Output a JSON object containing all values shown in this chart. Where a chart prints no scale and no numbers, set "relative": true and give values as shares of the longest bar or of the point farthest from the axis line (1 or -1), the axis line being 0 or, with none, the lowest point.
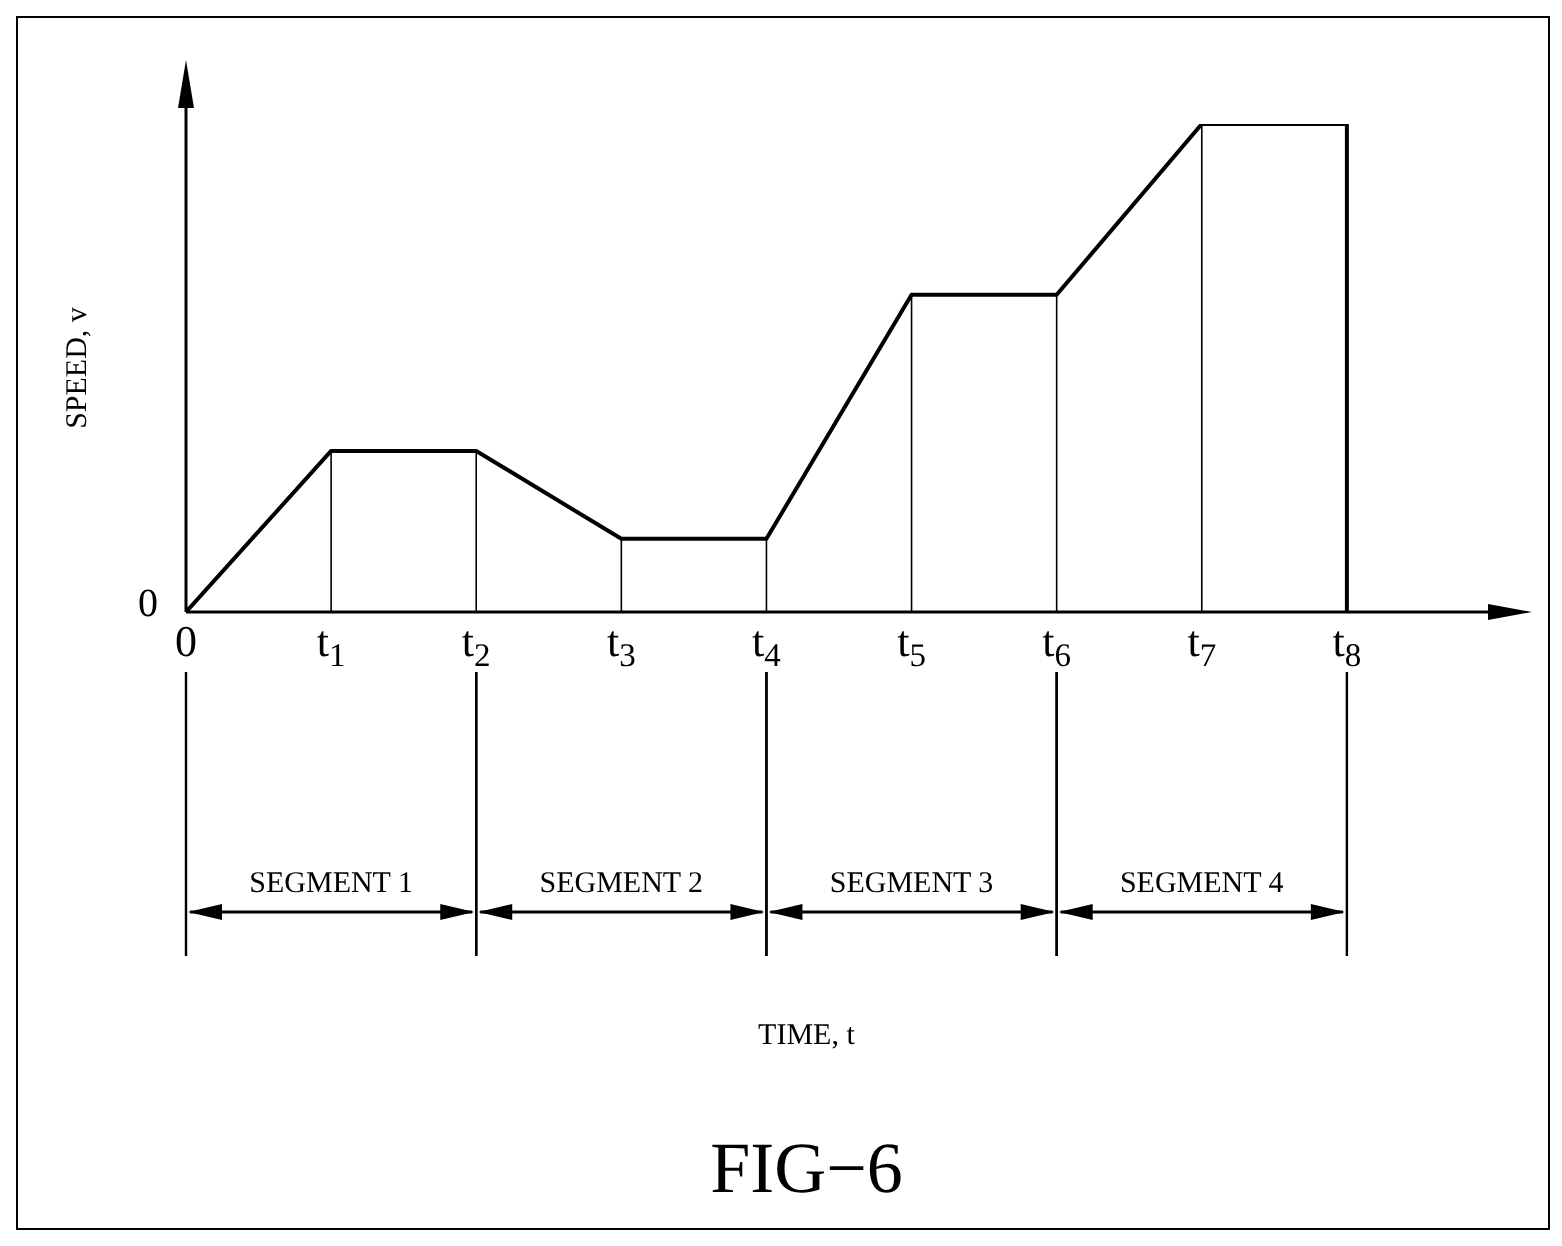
{
  "chart_data": {
    "type": "line",
    "title": "FIG−6",
    "ylabel": "SPEED, v",
    "relative": true,
    "categories": [
      "0",
      "t$_{1}$",
      "t$_{2}$",
      "t$_{3}$",
      "t$_{4}$",
      "t$_{5}$",
      "t$_{6}$",
      "t$_{7}$",
      "t$_{8}$"
    ],
    "series": [
      {
        "color": "#000000",
        "values": [
          0,
          0.33,
          0.33,
          0.15,
          0.15,
          0.65,
          0.65,
          1,
          1
        ]
      }
    ],
    "ref_lines": [
      {
        "axis": "x",
        "value": "t$_{1}$",
        "label": null
      },
      {
        "axis": "x",
        "value": "t$_{2}$",
        "label": null
      },
      {
        "axis": "x",
        "value": "t$_{3}$",
        "label": null
      },
      {
        "axis": "x",
        "value": "t$_{4}$",
        "label": null
      },
      {
        "axis": "x",
        "value": "t$_{5}$",
        "label": null
      },
      {
        "axis": "x",
        "value": "t$_{6}$",
        "label": null
      },
      {
        "axis": "x",
        "value": "t$_{7}$",
        "label": null
      },
      {
        "axis": "x",
        "value": "t$_{8}$",
        "label": null
      }
    ],
    "annotations": [
      {
        "text": "0",
        "x": "0",
        "y": 0
      },
      "SEGMENT 1",
      "SEGMENT 2",
      "SEGMENT 3",
      "SEGMENT 4",
      "TIME, t"
    ],
    "grid": false,
    "legend": false,
    "marker": "none",
    "line_style": "solid"
  }
}
